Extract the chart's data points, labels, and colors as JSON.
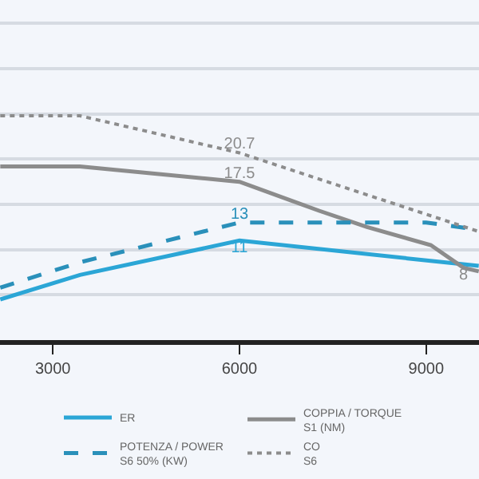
{
  "chart_data": {
    "type": "line",
    "xlim": [
      2150,
      9850
    ],
    "xticks": [
      3000,
      6000,
      9000
    ],
    "ylim": [
      0,
      37.6
    ],
    "yticks": [
      {
        "value": 5,
        "label": null
      },
      {
        "value": 10,
        "label": null
      },
      {
        "value": 15,
        "label": null
      },
      {
        "value": 20,
        "label": null
      },
      {
        "value": 25,
        "label": null
      },
      {
        "value": 30,
        "label": null
      },
      {
        "value": 35,
        "label": null
      }
    ],
    "tick_labels": "x",
    "grid": "y",
    "legend": "bottom",
    "marker": "none",
    "series": [
      {
        "name": "ER",
        "color": "#2ba6d6",
        "line_style": "solid",
        "x": [
          2154,
          3436,
          6000,
          9846
        ],
        "values": [
          4.5,
          7.2,
          11,
          8.2
        ],
        "value_labels": [
          null,
          null,
          "11",
          null
        ]
      },
      {
        "name": "COPPIA / TORQUE\nS1 (NM)",
        "color": "#8c8c8c",
        "line_style": "solid",
        "x": [
          2154,
          3436,
          6000,
          7280,
          8050,
          9075,
          9600,
          9846
        ],
        "values": [
          19.2,
          19.2,
          17.5,
          14.3,
          12.5,
          10.5,
          8,
          7.6
        ],
        "value_labels": [
          null,
          null,
          "17.5",
          null,
          null,
          null,
          "8",
          null
        ]
      },
      {
        "name": "POTENZA / POWER\nS6 50% (KW)",
        "color": "#2a90ba",
        "line_style": "dashed",
        "x": [
          2154,
          3436,
          6000,
          9000,
          9846
        ],
        "values": [
          5.8,
          8.6,
          13,
          13,
          12.2
        ],
        "value_labels": [
          null,
          null,
          "13",
          null,
          null
        ]
      },
      {
        "name": "CO\nS6",
        "color": "#8c8c8c",
        "line_style": "dotted",
        "x": [
          2154,
          3436,
          6000,
          9846
        ],
        "values": [
          24.8,
          24.8,
          20.7,
          12
        ],
        "value_labels": [
          null,
          null,
          "20.7",
          null
        ]
      }
    ]
  }
}
